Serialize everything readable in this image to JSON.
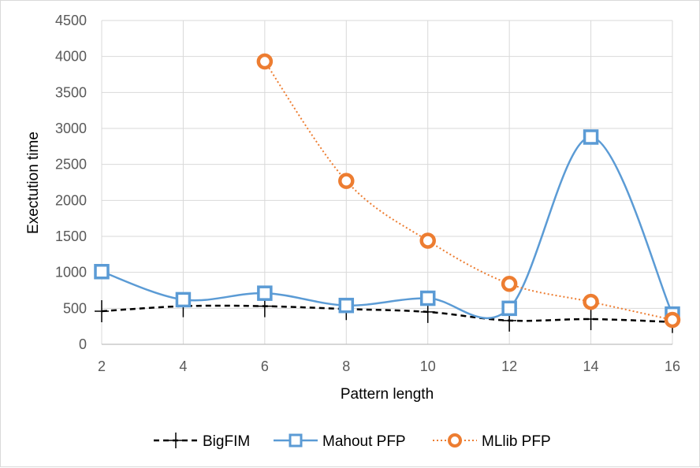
{
  "chart_data": {
    "type": "line",
    "x": [
      2,
      4,
      6,
      8,
      10,
      12,
      14,
      16
    ],
    "xlabel": "Pattern length",
    "ylabel": "Exectution time",
    "xlim": [
      2,
      16
    ],
    "ylim": [
      0,
      4500
    ],
    "x_ticks": [
      "2",
      "4",
      "6",
      "8",
      "10",
      "12",
      "14",
      "16"
    ],
    "y_ticks": [
      "0",
      "500",
      "1000",
      "1500",
      "2000",
      "2500",
      "3000",
      "3500",
      "4000",
      "4500"
    ],
    "grid": true,
    "legend_position": "bottom",
    "series": [
      {
        "name": "BigFIM",
        "color": "#000000",
        "style": "dashed",
        "marker": "plus",
        "values": [
          460,
          530,
          530,
          490,
          450,
          330,
          350,
          310
        ]
      },
      {
        "name": "Mahout PFP",
        "color": "#5b9bd5",
        "style": "solid-smooth",
        "marker": "square",
        "values": [
          1010,
          620,
          710,
          540,
          640,
          500,
          2880,
          420
        ]
      },
      {
        "name": "MLlib PFP",
        "color": "#ed7d31",
        "style": "dotted-smooth",
        "marker": "circle",
        "values": [
          null,
          null,
          3930,
          2270,
          1440,
          840,
          590,
          340
        ]
      }
    ]
  }
}
